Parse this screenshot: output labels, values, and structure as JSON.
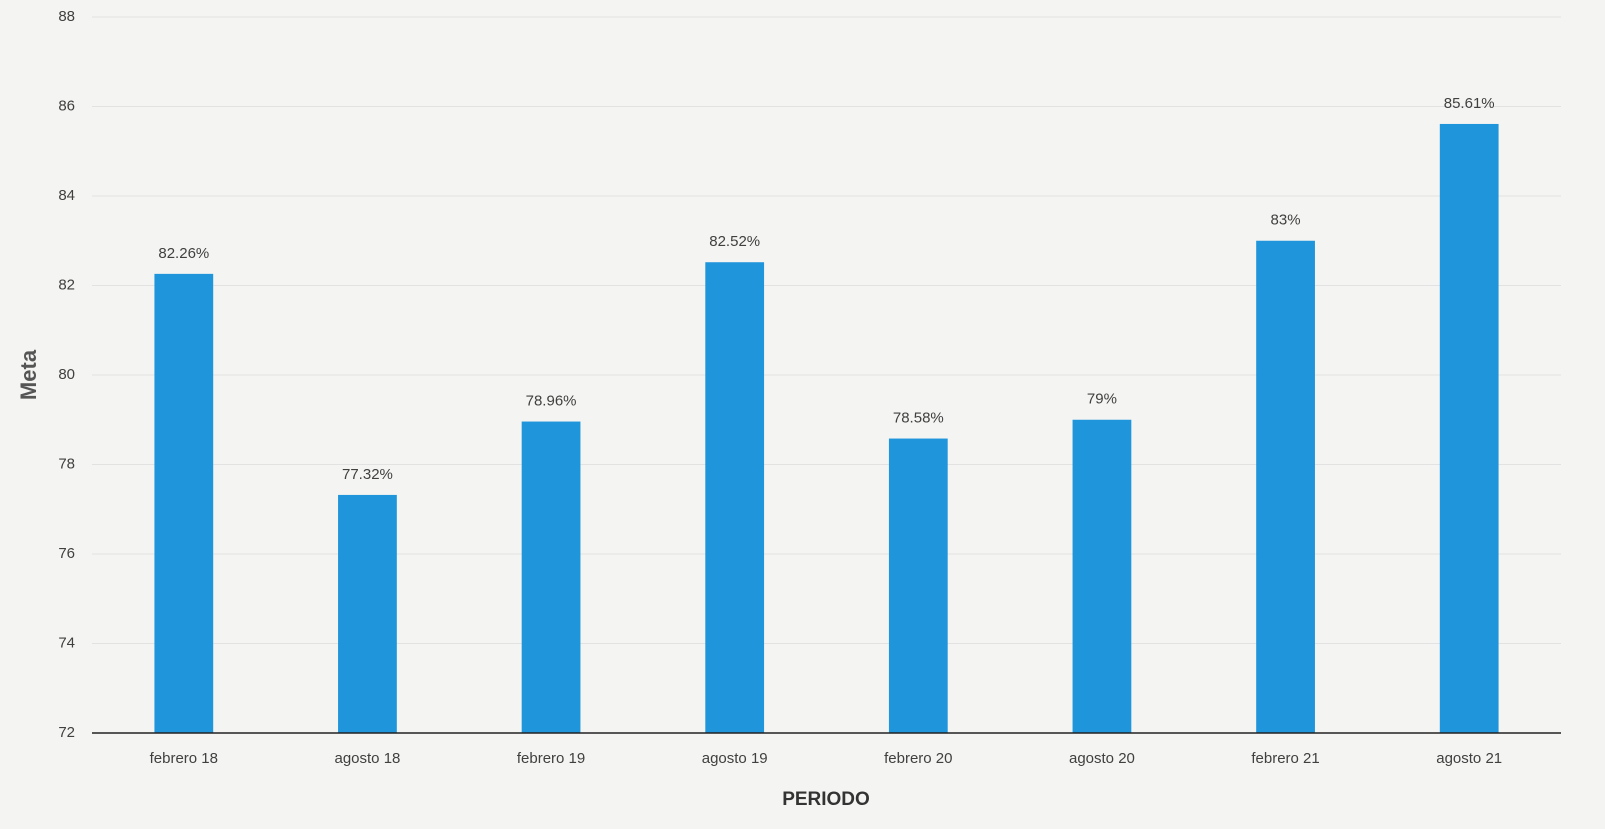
{
  "chart_data": {
    "type": "bar",
    "x_label": "PERIODO",
    "y_label": "Meta",
    "categories": [
      "febrero 18",
      "agosto 18",
      "febrero 19",
      "agosto 19",
      "febrero 20",
      "agosto 20",
      "febrero 21",
      "agosto 21"
    ],
    "values": [
      82.26,
      77.32,
      78.96,
      82.52,
      78.58,
      79,
      83,
      85.61
    ],
    "value_labels": [
      "82.26%",
      "77.32%",
      "78.96%",
      "82.52%",
      "78.58%",
      "79%",
      "83%",
      "85.61%"
    ],
    "color": "#1f95dc",
    "ylim": [
      72,
      88
    ],
    "yticks": [
      72,
      74,
      76,
      78,
      80,
      82,
      84,
      86,
      88
    ],
    "grid": true
  }
}
